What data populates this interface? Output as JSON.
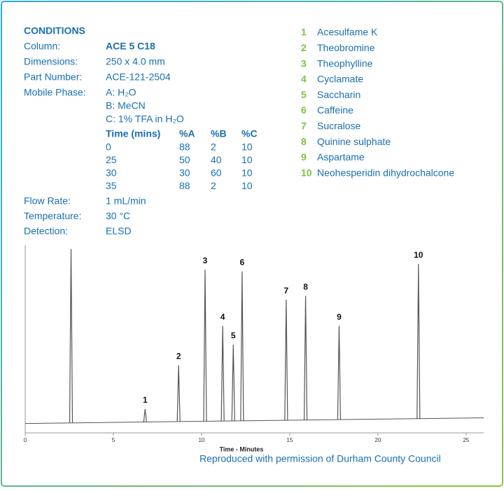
{
  "conditions": {
    "title": "CONDITIONS",
    "rows": [
      [
        "Column:",
        "ACE 5 C18"
      ],
      [
        "Dimensions:",
        "250 x 4.0 mm"
      ],
      [
        "Part Number:",
        "ACE-121-2504"
      ],
      [
        "Mobile Phase:",
        "A: H₂O"
      ]
    ],
    "mobile_phase_more": [
      "B: MeCN",
      "C: 1% TFA in H₂O"
    ],
    "gradient": {
      "header": [
        "Time (mins)",
        "%A",
        "%B",
        "%C"
      ],
      "rows": [
        [
          "0",
          "88",
          "2",
          "10"
        ],
        [
          "25",
          "50",
          "40",
          "10"
        ],
        [
          "30",
          "30",
          "60",
          "10"
        ],
        [
          "35",
          "88",
          "2",
          "10"
        ]
      ]
    },
    "rows_after": [
      [
        "Flow Rate:",
        "1 mL/min"
      ],
      [
        "Temperature:",
        "30 °C"
      ],
      [
        "Detection:",
        "ELSD"
      ]
    ]
  },
  "legend": [
    [
      "1",
      "Acesulfame K"
    ],
    [
      "2",
      "Theobromine"
    ],
    [
      "3",
      "Theophylline"
    ],
    [
      "4",
      "Cyclamate"
    ],
    [
      "5",
      "Saccharin"
    ],
    [
      "6",
      "Caffeine"
    ],
    [
      "7",
      "Sucralose"
    ],
    [
      "8",
      "Quinine sulphate"
    ],
    [
      "9",
      "Aspartame"
    ],
    [
      "10",
      "Neohesperidin dihydrochalcone"
    ]
  ],
  "chart_data": {
    "type": "chromatogram",
    "xlabel": "Time - Minutes",
    "color": "#555555",
    "xlim": [
      0,
      26
    ],
    "xticks": [
      0,
      5,
      10,
      15,
      20,
      25
    ],
    "ylim": [
      0,
      100
    ],
    "baseline": {
      "x": [
        0,
        26
      ],
      "values": [
        5,
        8
      ]
    },
    "peaks": [
      {
        "label": null,
        "time": 2.6,
        "height": 98
      },
      {
        "label": "1",
        "time": 6.8,
        "height": 12.7
      },
      {
        "label": "2",
        "time": 8.7,
        "height": 36
      },
      {
        "label": "3",
        "time": 10.2,
        "height": 87
      },
      {
        "label": "4",
        "time": 11.2,
        "height": 57
      },
      {
        "label": "5",
        "time": 11.8,
        "height": 47
      },
      {
        "label": "6",
        "time": 12.3,
        "height": 86
      },
      {
        "label": "7",
        "time": 14.8,
        "height": 71
      },
      {
        "label": "8",
        "time": 15.9,
        "height": 73
      },
      {
        "label": "9",
        "time": 17.8,
        "height": 57
      },
      {
        "label": "10",
        "time": 22.3,
        "height": 90
      }
    ]
  },
  "credit": "Reproduced with permission of Durham County Council"
}
